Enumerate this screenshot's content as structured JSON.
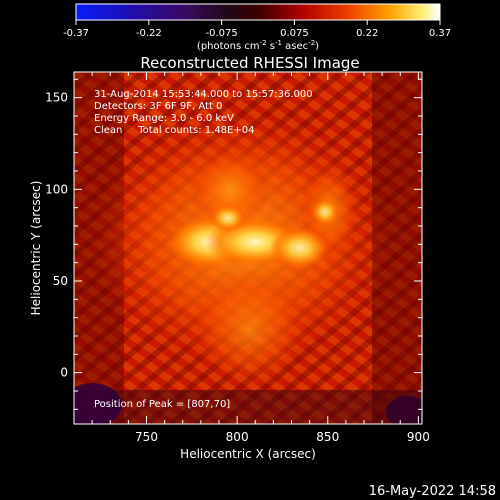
{
  "colorbar": {
    "ticks": [
      "-0.37",
      "-0.22",
      "-0.075",
      "0.075",
      "0.22",
      "0.37"
    ],
    "units_prefix": "(photons cm",
    "units_exp1": "-2",
    "units_mid": " s",
    "units_exp2": "-1",
    "units_mid2": " asec",
    "units_exp3": "-2",
    "units_suffix": ")"
  },
  "chart_data": {
    "type": "heatmap",
    "title": "Reconstructed RHESSI Image",
    "xlabel": "Heliocentric X (arcsec)",
    "ylabel": "Heliocentric Y (arcsec)",
    "xlim": [
      710,
      902
    ],
    "ylim": [
      -28,
      164
    ],
    "xticks": [
      750,
      800,
      850,
      900
    ],
    "yticks": [
      0,
      50,
      100,
      150
    ],
    "clim": [
      -0.37,
      0.37
    ],
    "colormap": "blue-black-purple-red-orange-yellow-white",
    "peak": [
      807,
      70
    ],
    "annotations": [
      "31-Aug-2014 15:53:44.000 to 15:57:36.000",
      "Detectors: 3F 6F 9F, Att 0",
      "Energy Range: 3.0 - 6.0 keV",
      "Clean     Total counts: 1.48E+04",
      "Position of Peak = [807,70]"
    ]
  },
  "footer": {
    "timestamp": "16-May-2022 14:58"
  }
}
